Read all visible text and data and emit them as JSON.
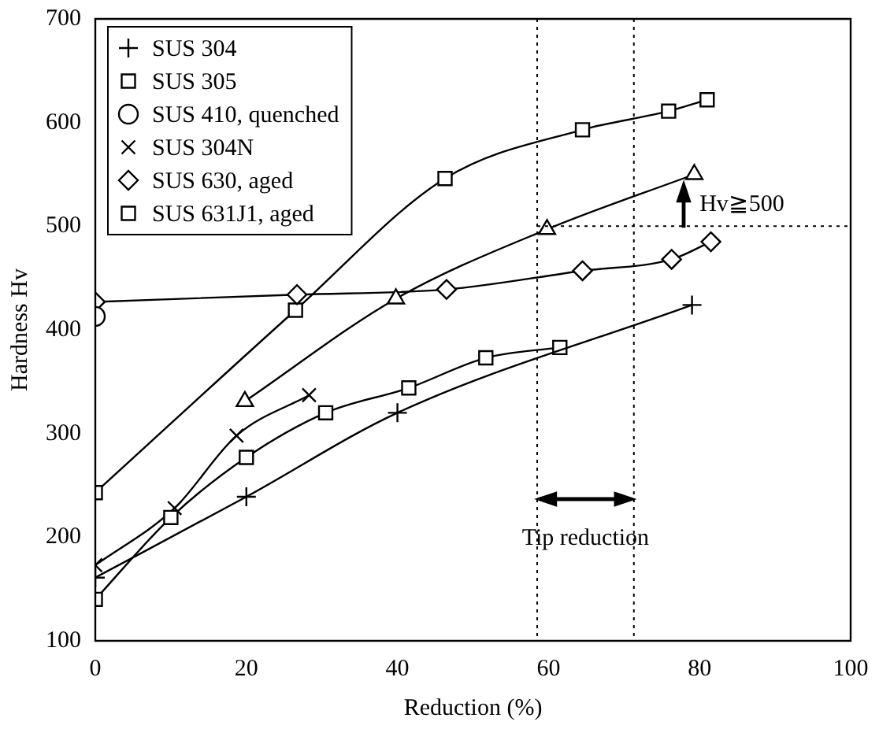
{
  "chart_data": {
    "type": "line",
    "xlabel": "Reduction (%)",
    "ylabel": "Hardness Hv",
    "xlim": [
      0,
      100
    ],
    "xticks": [
      0,
      20,
      40,
      60,
      80,
      100
    ],
    "ylim": [
      100,
      700
    ],
    "yticks": [
      100,
      200,
      300,
      400,
      500,
      600,
      700
    ],
    "grid": false,
    "legend": "top left",
    "line_style": "solid",
    "series": [
      {
        "name": "SUS 304",
        "color": "#000000",
        "marker": "cross",
        "x": [
          0,
          20,
          40,
          79
        ],
        "values": [
          161,
          239,
          320,
          424
        ]
      },
      {
        "name": "SUS 305",
        "color": "#000000",
        "marker": "square",
        "x": [
          0,
          10,
          20,
          30.5,
          41.5,
          51.7,
          61.5
        ],
        "values": [
          140,
          219,
          277,
          320,
          344,
          373,
          383
        ]
      },
      {
        "color": "#000000",
        "marker": "triangle",
        "x": [
          19.8,
          39.8,
          59.8,
          79.3
        ],
        "values": [
          331,
          430,
          497,
          550
        ]
      },
      {
        "name": "SUS 410, quenched",
        "color": "#000000",
        "marker": "circle",
        "x": [
          0
        ],
        "values": [
          413
        ]
      },
      {
        "name": "SUS 304N",
        "color": "#000000",
        "marker": "x",
        "x": [
          0,
          10.5,
          18.7,
          28.3
        ],
        "values": [
          173,
          228,
          298,
          337
        ]
      },
      {
        "name": "SUS 630, aged",
        "color": "#000000",
        "marker": "diamond",
        "x": [
          0,
          26.7,
          46.5,
          64.5,
          76.3,
          81.5
        ],
        "values": [
          427,
          434,
          439,
          457,
          468,
          485
        ]
      },
      {
        "name": "SUS 631J1, aged",
        "color": "#000000",
        "marker": "square",
        "x": [
          0,
          26.5,
          46.3,
          64.5,
          75.9,
          81
        ],
        "values": [
          243,
          419,
          546,
          593,
          611,
          622
        ]
      }
    ],
    "ref_lines": [
      {
        "axis": "x",
        "value": 58.5,
        "line_style": "dotted"
      },
      {
        "axis": "x",
        "value": 71.3,
        "line_style": "dotted"
      },
      {
        "axis": "y",
        "value": 500,
        "line_style": "dotted",
        "label": "Hv≧500"
      }
    ],
    "annotations": [
      "Tip reduction"
    ]
  }
}
